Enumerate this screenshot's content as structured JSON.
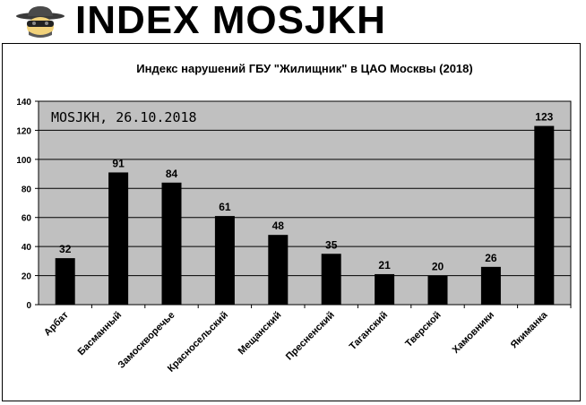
{
  "banner": {
    "title": "INDEX MOSJKH",
    "icon": "spy-icon"
  },
  "chart_data": {
    "type": "bar",
    "title": "Индекс нарушений ГБУ \"Жилищник\" в ЦАО Москвы (2018)",
    "annotation": "MOSJKH, 26.10.2018",
    "categories": [
      "Арбат",
      "Басманный",
      "Замоскворечье",
      "Красносельский",
      "Мещанский",
      "Пресненский",
      "Таганский",
      "Тверской",
      "Хамовники",
      "Якиманка"
    ],
    "values": [
      32,
      91,
      84,
      61,
      48,
      35,
      21,
      20,
      26,
      123
    ],
    "yticks": [
      0,
      20,
      40,
      60,
      80,
      100,
      120,
      140
    ],
    "ylim": [
      0,
      140
    ],
    "grid": true,
    "plot_background": "#c0c0c0",
    "bar_color": "#000000",
    "xlabel": "",
    "ylabel": ""
  }
}
